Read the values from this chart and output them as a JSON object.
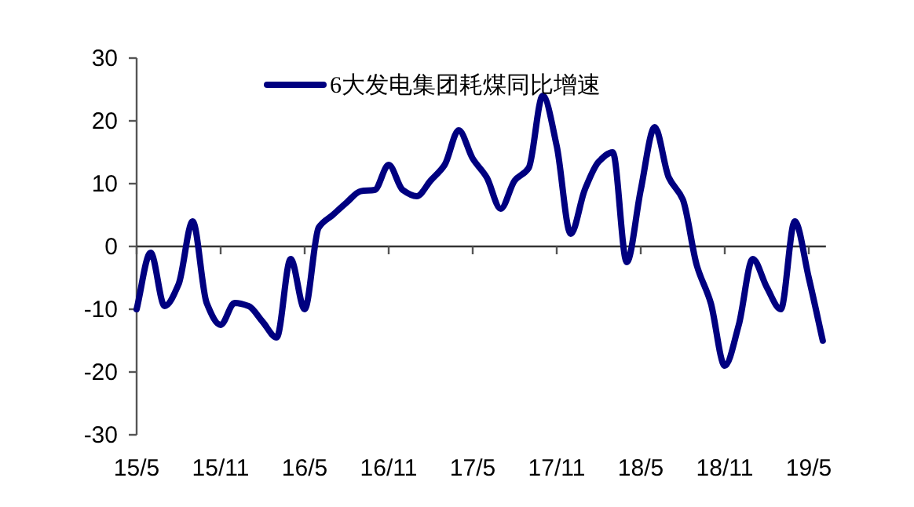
{
  "chart_data": {
    "type": "line",
    "categories": [
      "15/5",
      null,
      null,
      null,
      null,
      null,
      "15/11",
      null,
      null,
      null,
      null,
      null,
      "16/5",
      null,
      null,
      null,
      null,
      null,
      "16/11",
      null,
      null,
      null,
      null,
      null,
      "17/5",
      null,
      null,
      null,
      null,
      null,
      "17/11",
      null,
      null,
      null,
      null,
      null,
      "18/5",
      null,
      null,
      null,
      null,
      null,
      "18/11",
      null,
      null,
      null,
      null,
      null,
      "19/5",
      null
    ],
    "series": [
      {
        "name": "6大发电集团耗煤同比增速",
        "color": "#000080",
        "values": [
          -10,
          -1,
          -9.5,
          -6,
          4,
          -9,
          -12.5,
          -9,
          -9.5,
          -12,
          -14.5,
          -2,
          -10,
          3,
          5,
          7,
          8.8,
          9,
          13,
          9,
          8,
          10.5,
          13,
          18.5,
          14,
          11,
          6,
          10.5,
          12.5,
          24,
          16,
          2,
          9,
          13.5,
          15,
          -2.5,
          9,
          19,
          11,
          7.5,
          -3,
          -9,
          -19,
          -12.5,
          -2,
          -6.5,
          -10,
          4,
          -5,
          -15
        ]
      }
    ],
    "ylim": [
      -30,
      30
    ],
    "yticks": [
      -30,
      -20,
      -10,
      0,
      10,
      20,
      30
    ],
    "legend": "top"
  }
}
